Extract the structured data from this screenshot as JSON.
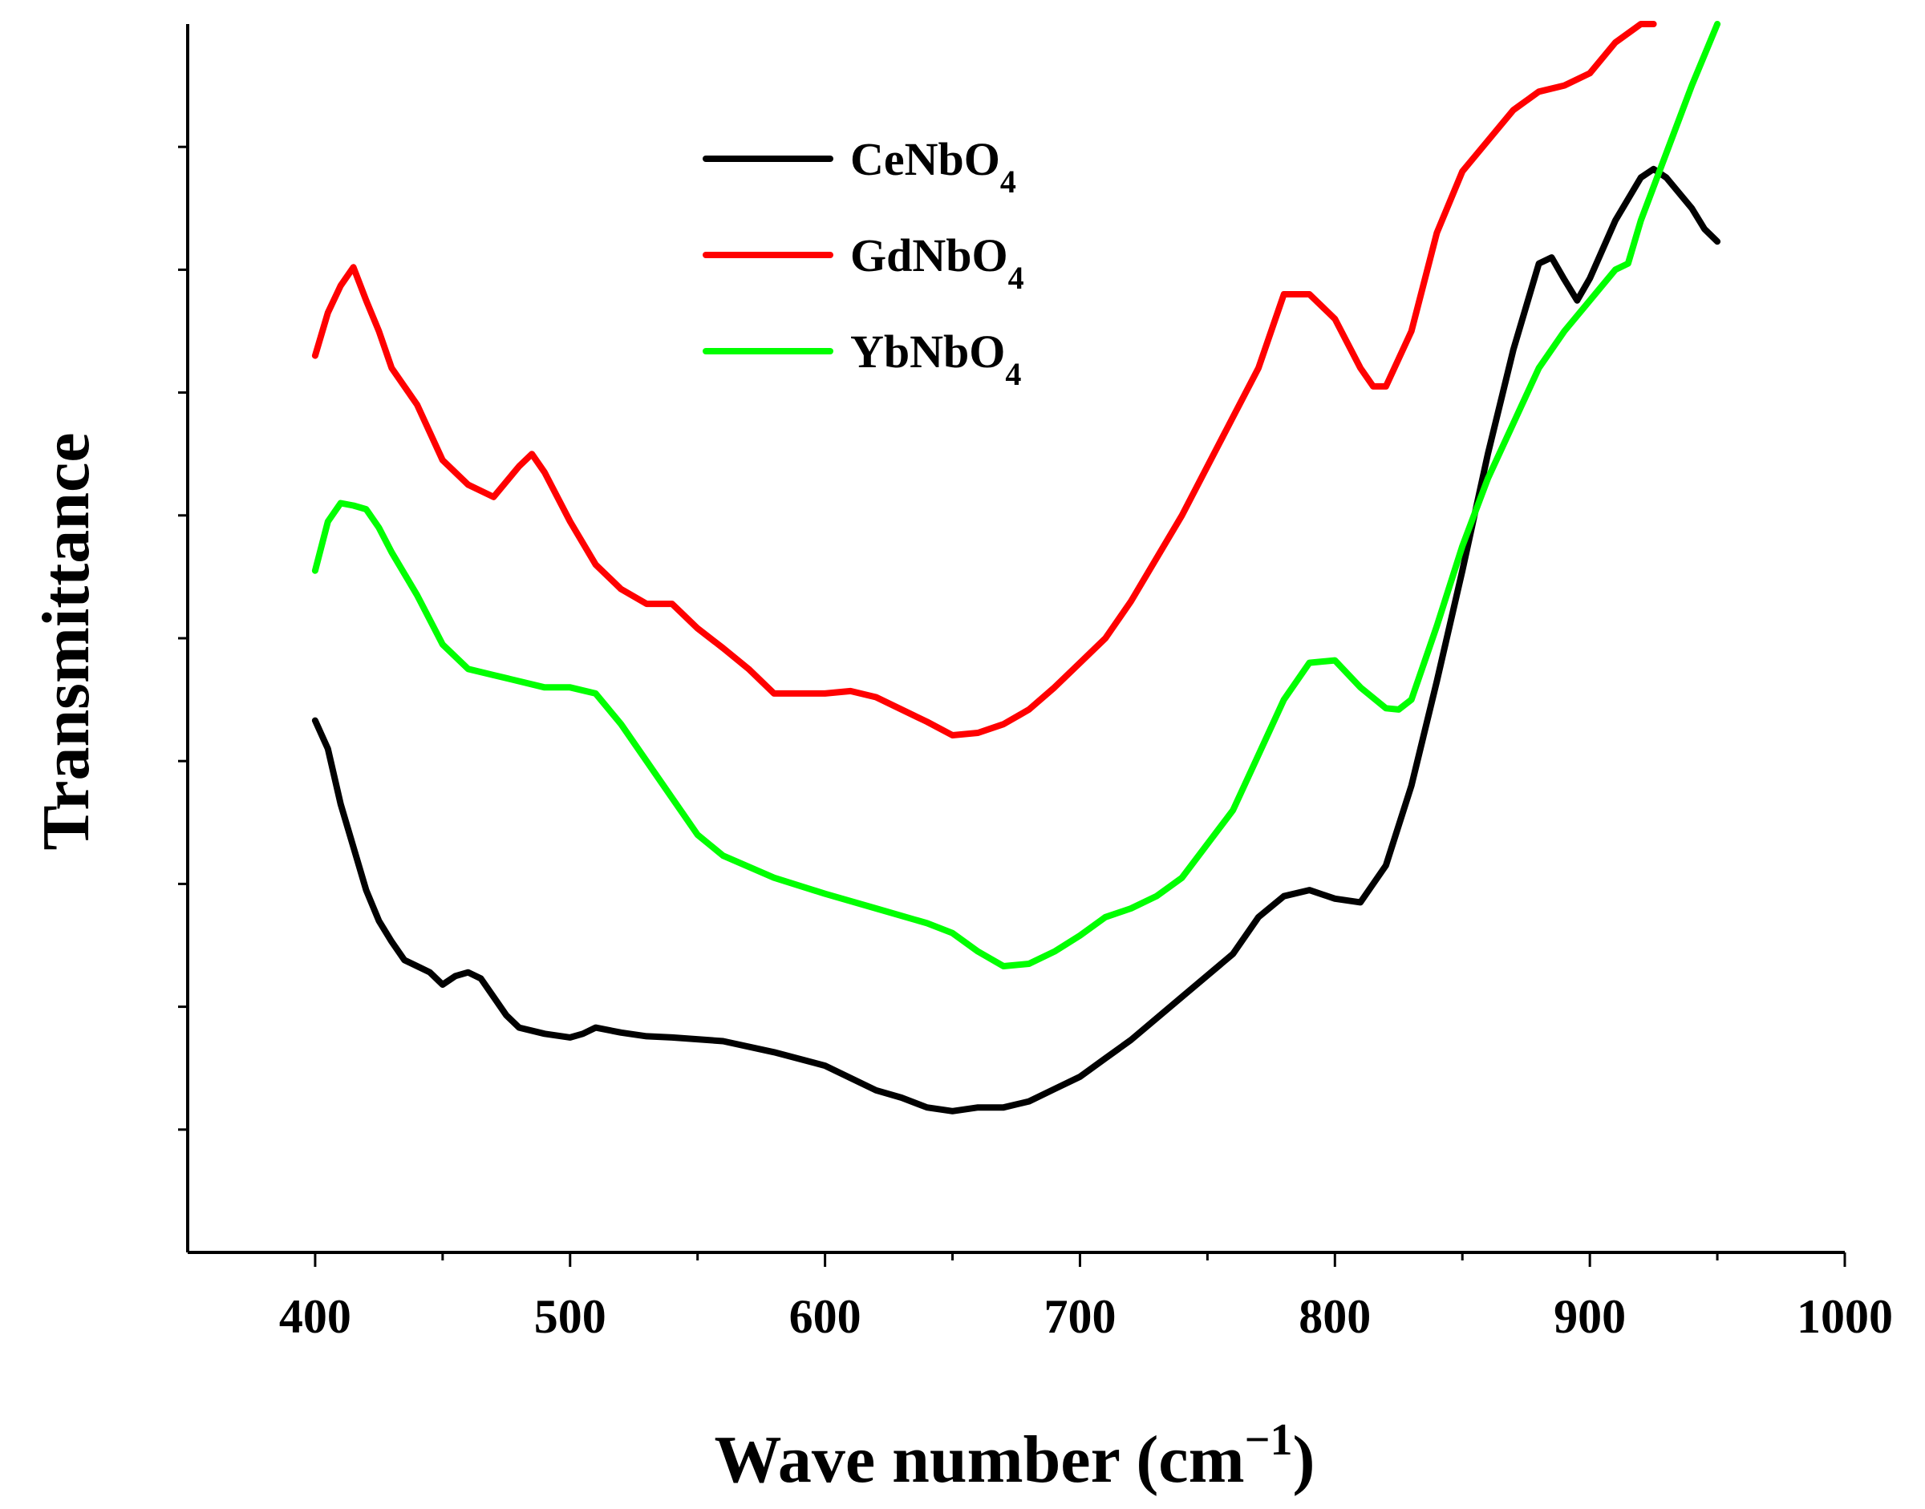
{
  "chart_data": {
    "type": "line",
    "xlabel": "Wave number (cm",
    "xlabel_sup": "−1",
    "xlabel_close": ")",
    "ylabel": "Transmittance",
    "xlim": [
      350,
      1000
    ],
    "ylim": [
      0,
      100
    ],
    "x_ticks": [
      "400",
      "500",
      "600",
      "700",
      "800",
      "900",
      "1000"
    ],
    "y_ticks_shown": false,
    "legend_position": "top-center",
    "series": [
      {
        "name": "CeNbO",
        "subscript": "4",
        "color": "#000000",
        "x": [
          400,
          405,
          410,
          415,
          420,
          425,
          430,
          435,
          440,
          445,
          450,
          455,
          460,
          465,
          470,
          475,
          480,
          490,
          500,
          505,
          510,
          520,
          530,
          540,
          560,
          580,
          600,
          620,
          630,
          640,
          650,
          660,
          670,
          680,
          690,
          700,
          710,
          720,
          740,
          760,
          770,
          780,
          790,
          800,
          810,
          820,
          830,
          840,
          850,
          860,
          870,
          880,
          885,
          890,
          895,
          900,
          910,
          920,
          925,
          930,
          940,
          945,
          950
        ],
        "y": [
          43.3,
          41.0,
          36.5,
          33.0,
          29.5,
          27.0,
          25.3,
          23.8,
          23.3,
          22.8,
          21.8,
          22.5,
          22.8,
          22.3,
          20.8,
          19.3,
          18.3,
          17.8,
          17.5,
          17.8,
          18.3,
          17.9,
          17.6,
          17.5,
          17.2,
          16.3,
          15.2,
          13.2,
          12.6,
          11.8,
          11.5,
          11.8,
          11.8,
          12.3,
          13.3,
          14.3,
          15.8,
          17.3,
          20.8,
          24.3,
          27.3,
          29.0,
          29.5,
          28.8,
          28.5,
          31.5,
          38.0,
          46.5,
          55.5,
          65.0,
          73.5,
          80.5,
          81.0,
          79.2,
          77.5,
          79.3,
          84.0,
          87.5,
          88.2,
          87.5,
          85.0,
          83.3,
          82.3
        ]
      },
      {
        "name": "GdNbO",
        "subscript": "4",
        "color": "#ff0000",
        "x": [
          400,
          405,
          410,
          415,
          420,
          425,
          430,
          440,
          450,
          460,
          470,
          480,
          485,
          490,
          500,
          510,
          520,
          530,
          540,
          550,
          560,
          570,
          580,
          590,
          600,
          610,
          620,
          630,
          640,
          650,
          660,
          670,
          680,
          690,
          700,
          710,
          720,
          740,
          760,
          770,
          780,
          790,
          800,
          810,
          815,
          820,
          830,
          840,
          850,
          860,
          870,
          880,
          890,
          900,
          910,
          920,
          925
        ],
        "y": [
          73.0,
          76.5,
          78.7,
          80.2,
          77.5,
          75.0,
          72.0,
          69.0,
          64.5,
          62.5,
          61.5,
          64.0,
          65.0,
          63.5,
          59.5,
          56.0,
          54.0,
          52.8,
          52.8,
          50.8,
          49.2,
          47.5,
          45.5,
          45.5,
          45.5,
          45.7,
          45.2,
          44.2,
          43.2,
          42.1,
          42.3,
          43.0,
          44.2,
          46.0,
          48.0,
          50.0,
          53.0,
          60.0,
          68.0,
          72.0,
          78.0,
          78.0,
          76.0,
          72.0,
          70.5,
          70.5,
          75.0,
          83.0,
          88.0,
          90.5,
          93.0,
          94.5,
          95.0,
          96.0,
          98.5,
          100.0,
          100.0
        ]
      },
      {
        "name": "YbNbO",
        "subscript": "4",
        "color": "#00ff00",
        "x": [
          400,
          405,
          410,
          415,
          420,
          425,
          430,
          440,
          450,
          460,
          470,
          480,
          490,
          500,
          510,
          520,
          530,
          540,
          550,
          560,
          580,
          600,
          620,
          640,
          650,
          660,
          670,
          680,
          690,
          700,
          710,
          720,
          730,
          740,
          760,
          770,
          780,
          790,
          800,
          810,
          820,
          825,
          830,
          840,
          850,
          860,
          870,
          880,
          890,
          900,
          910,
          915,
          920,
          930,
          940,
          950
        ],
        "y": [
          55.5,
          59.5,
          61.0,
          60.8,
          60.5,
          59.0,
          57.0,
          53.5,
          49.5,
          47.5,
          47.0,
          46.5,
          46.0,
          46.0,
          45.5,
          43.0,
          40.0,
          37.0,
          34.0,
          32.3,
          30.5,
          29.2,
          28.0,
          26.8,
          26.0,
          24.5,
          23.3,
          23.5,
          24.5,
          25.8,
          27.3,
          28.0,
          29.0,
          30.5,
          36.0,
          40.5,
          45.0,
          48.0,
          48.2,
          46.0,
          44.3,
          44.2,
          45.0,
          51.0,
          57.5,
          63.0,
          67.5,
          72.0,
          75.0,
          77.5,
          80.0,
          80.5,
          84.0,
          89.5,
          95.0,
          100.0
        ]
      }
    ]
  }
}
